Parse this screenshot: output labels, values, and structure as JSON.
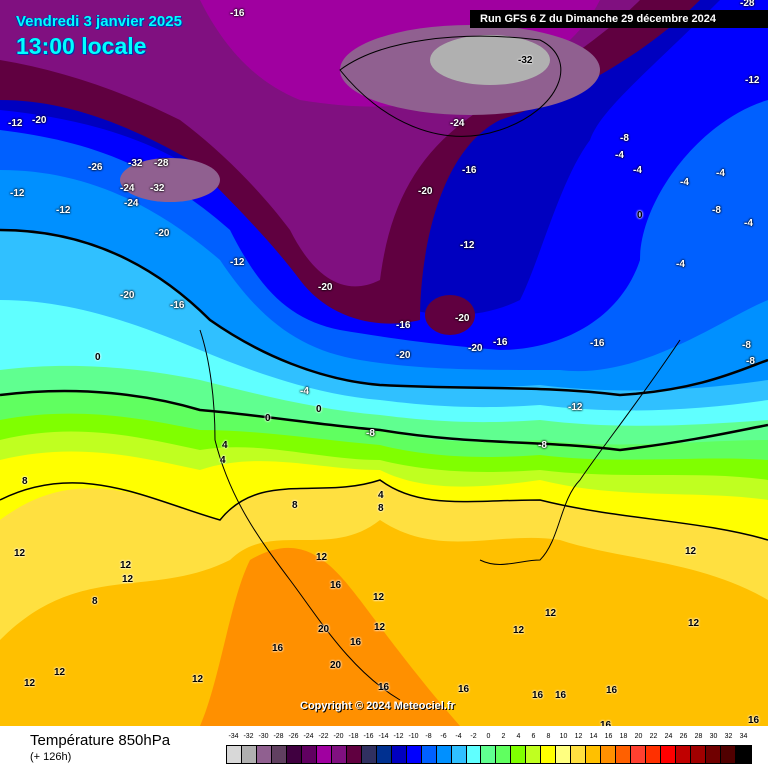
{
  "header": {
    "date": "Vendredi 3 janvier 2025",
    "time": "13:00 locale",
    "run": "Run GFS 6 Z du Dimanche 29 décembre 2024"
  },
  "copyright": "Copyright © 2024 Meteociel.fr",
  "legend": {
    "title": "Température 850hPa",
    "subtitle": "(+ 126h)",
    "ticks": [
      "-34",
      "-32",
      "-30",
      "-28",
      "-26",
      "-24",
      "-22",
      "-20",
      "-18",
      "-16",
      "-14",
      "-12",
      "-10",
      "-8",
      "-6",
      "-4",
      "-2",
      "0",
      "2",
      "4",
      "6",
      "8",
      "10",
      "12",
      "14",
      "16",
      "18",
      "20",
      "22",
      "24",
      "26",
      "28",
      "30",
      "32",
      "34"
    ],
    "colors": [
      "#d8d8d8",
      "#b0b0b0",
      "#906090",
      "#604060",
      "#400040",
      "#600060",
      "#a000a0",
      "#801080",
      "#600040",
      "#303060",
      "#003090",
      "#0000c0",
      "#0000ff",
      "#0060ff",
      "#0090ff",
      "#30c0ff",
      "#60ffff",
      "#60ff90",
      "#60ff60",
      "#80ff00",
      "#c0ff20",
      "#ffff00",
      "#ffff80",
      "#ffe040",
      "#ffc000",
      "#ff9000",
      "#ff6000",
      "#ff4030",
      "#ff3000",
      "#ff0000",
      "#c00000",
      "#a00000",
      "#700000",
      "#500000",
      "#000000"
    ]
  },
  "map_labels": [
    "-16",
    "-28",
    "-32",
    "-24",
    "-12",
    "-12",
    "-20",
    "-26",
    "-32",
    "-28",
    "-24",
    "-32",
    "-12",
    "-24",
    "-20",
    "-20",
    "-16",
    "-8",
    "-4",
    "-4",
    "-4",
    "-12",
    "-16",
    "-12",
    "-20",
    "-20",
    "-20",
    "-16",
    "-16",
    "-20",
    "-20",
    "-16",
    "-12",
    "-8",
    "-4",
    "0",
    "-4",
    "-8",
    "-8",
    "-4",
    "0",
    "0",
    "0",
    "4",
    "8",
    "4",
    "8",
    "8",
    "12",
    "12",
    "8",
    "12",
    "12",
    "16",
    "16",
    "20",
    "20",
    "16",
    "12",
    "12",
    "12",
    "12",
    "12",
    "16",
    "16",
    "16",
    "16",
    "16",
    "12",
    "12",
    "-8",
    "-12",
    "-4",
    "-8",
    "4",
    "12",
    "12",
    "16",
    "16"
  ]
}
